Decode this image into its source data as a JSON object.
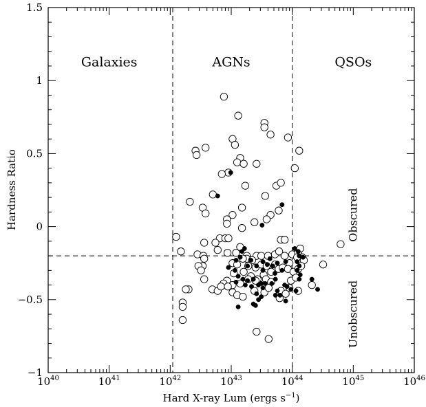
{
  "chart_data": {
    "type": "scatter",
    "title": "",
    "xlabel_main": "Hard X-ray Lum (ergs s",
    "xlabel_exp": "−1",
    "xlabel_close": ")",
    "ylabel": "Hardness Ratio",
    "x_scale": "log",
    "xlim": [
      1e+40,
      1e+46
    ],
    "ylim": [
      -1,
      1.5
    ],
    "x_ticks": [
      {
        "value": 1e+40,
        "base": "10",
        "exp": "40"
      },
      {
        "value": 1e+41,
        "base": "10",
        "exp": "41"
      },
      {
        "value": 1e+42,
        "base": "10",
        "exp": "42"
      },
      {
        "value": 1e+43,
        "base": "10",
        "exp": "43"
      },
      {
        "value": 1e+44,
        "base": "10",
        "exp": "44"
      },
      {
        "value": 1e+45,
        "base": "10",
        "exp": "45"
      },
      {
        "value": 1e+46,
        "base": "10",
        "exp": "46"
      }
    ],
    "y_ticks": [
      {
        "value": -1,
        "label": "−1"
      },
      {
        "value": -0.5,
        "label": "−0.5"
      },
      {
        "value": 0,
        "label": "0"
      },
      {
        "value": 0.5,
        "label": "0.5"
      },
      {
        "value": 1,
        "label": "1"
      },
      {
        "value": 1.5,
        "label": "1.5"
      }
    ],
    "grid": false,
    "reference_lines": {
      "vertical_x": [
        1.1e+42,
        1e+44
      ],
      "horizontal_y": -0.2
    },
    "region_labels": [
      {
        "text": "Galaxies",
        "x": 1e+41,
        "y": 1.13
      },
      {
        "text": "AGNs",
        "x": 1e+43,
        "y": 1.13
      },
      {
        "text": "QSOs",
        "x": 1e+45,
        "y": 1.13
      }
    ],
    "side_labels": [
      {
        "text": "Obscured",
        "x": 1e+45,
        "y": 0.08
      },
      {
        "text": "Unobscured",
        "x": 1e+45,
        "y": -0.6
      }
    ],
    "series": [
      {
        "marker": "open-circle",
        "points": [
          [
            4.9e+42,
            -0.43
          ],
          [
            7.6e+42,
            0.89
          ],
          [
            1.3e+43,
            0.76
          ],
          [
            3.5e+43,
            0.71
          ],
          [
            3.5e+43,
            0.68
          ],
          [
            4.4e+43,
            0.63
          ],
          [
            8.5e+43,
            0.61
          ],
          [
            1.05e+43,
            0.6
          ],
          [
            1.15e+43,
            0.56
          ],
          [
            1.3e+44,
            0.52
          ],
          [
            2.6e+42,
            0.52
          ],
          [
            3.8e+42,
            0.54
          ],
          [
            2.7e+42,
            0.49
          ],
          [
            1.4e+43,
            0.47
          ],
          [
            1.25e+43,
            0.44
          ],
          [
            1.6e+43,
            0.43
          ],
          [
            2.6e+43,
            0.43
          ],
          [
            1.1e+44,
            0.4
          ],
          [
            9e+42,
            0.37
          ],
          [
            7e+42,
            0.36
          ],
          [
            5.5e+43,
            0.28
          ],
          [
            6.5e+43,
            0.3
          ],
          [
            1.7e+43,
            0.28
          ],
          [
            3.6e+43,
            0.21
          ],
          [
            2.1e+42,
            0.17
          ],
          [
            5e+42,
            0.22
          ],
          [
            3.4e+42,
            0.13
          ],
          [
            3.8e+42,
            0.09
          ],
          [
            1.5e+43,
            0.13
          ],
          [
            2.4e+43,
            0.03
          ],
          [
            4.4e+43,
            0.08
          ],
          [
            6e+43,
            0.11
          ],
          [
            3.8e+43,
            0.05
          ],
          [
            8.5e+42,
            0.05
          ],
          [
            1.05e+43,
            0.08
          ],
          [
            8.5e+42,
            0.02
          ],
          [
            1.5e+43,
            -0.01
          ],
          [
            1.25e+42,
            -0.07
          ],
          [
            6.5e+42,
            -0.08
          ],
          [
            8e+42,
            -0.08
          ],
          [
            9e+42,
            -0.08
          ],
          [
            6.5e+43,
            -0.09
          ],
          [
            7.5e+43,
            -0.09
          ],
          [
            3.6e+42,
            -0.11
          ],
          [
            5.5e+42,
            -0.11
          ],
          [
            1.4e+43,
            -0.14
          ],
          [
            6.2e+44,
            -0.12
          ],
          [
            1.5e+42,
            -0.17
          ],
          [
            1.2e+43,
            -0.18
          ],
          [
            1.8e+43,
            -0.2
          ],
          [
            2.8e+42,
            -0.19
          ],
          [
            3.5e+42,
            -0.2
          ],
          [
            6e+42,
            -0.16
          ],
          [
            8.7e+42,
            -0.18
          ],
          [
            2.6e+43,
            -0.2
          ],
          [
            3.1e+43,
            -0.2
          ],
          [
            4e+43,
            -0.2
          ],
          [
            5.2e+43,
            -0.19
          ],
          [
            6.1e+43,
            -0.17
          ],
          [
            7.5e+43,
            -0.2
          ],
          [
            1e+44,
            -0.19
          ],
          [
            1.25e+44,
            -0.18
          ],
          [
            1.35e+44,
            -0.15
          ],
          [
            1.45e+44,
            -0.21
          ],
          [
            1.55e+44,
            -0.23
          ],
          [
            1.2e+44,
            -0.21
          ],
          [
            9e+43,
            -0.25
          ],
          [
            1.8e+43,
            -0.22
          ],
          [
            2.2e+43,
            -0.23
          ],
          [
            3.6e+42,
            -0.22
          ],
          [
            3.4e+42,
            -0.27
          ],
          [
            2.9e+42,
            -0.27
          ],
          [
            3.2e+42,
            -0.3
          ],
          [
            1.05e+43,
            -0.25
          ],
          [
            1.25e+43,
            -0.26
          ],
          [
            1.55e+43,
            -0.22
          ],
          [
            1.9e+43,
            -0.27
          ],
          [
            2.5e+43,
            -0.28
          ],
          [
            3.1e+43,
            -0.26
          ],
          [
            3.8e+43,
            -0.27
          ],
          [
            4.5e+43,
            -0.31
          ],
          [
            5.2e+43,
            -0.26
          ],
          [
            6e+43,
            -0.29
          ],
          [
            7e+43,
            -0.28
          ],
          [
            8.5e+43,
            -0.29
          ],
          [
            1.05e+44,
            -0.31
          ],
          [
            1.25e+44,
            -0.29
          ],
          [
            1.4e+44,
            -0.27
          ],
          [
            3.2e+44,
            -0.26
          ],
          [
            1.1e+43,
            -0.32
          ],
          [
            1.6e+43,
            -0.31
          ],
          [
            2.1e+43,
            -0.34
          ],
          [
            2.7e+43,
            -0.36
          ],
          [
            3.4e+43,
            -0.33
          ],
          [
            2.5e+43,
            -0.37
          ],
          [
            3.6e+42,
            -0.36
          ],
          [
            8.5e+42,
            -0.37
          ],
          [
            7.5e+42,
            -0.39
          ],
          [
            1.05e+43,
            -0.4
          ],
          [
            1.4e+43,
            -0.39
          ],
          [
            1.9e+43,
            -0.36
          ],
          [
            3.7e+43,
            -0.36
          ],
          [
            4.5e+43,
            -0.38
          ],
          [
            9.5e+43,
            -0.37
          ],
          [
            1.15e+44,
            -0.35
          ],
          [
            2.1e+44,
            -0.4
          ],
          [
            6e+42,
            -0.44
          ],
          [
            6.8e+42,
            -0.41
          ],
          [
            8.8e+42,
            -0.41
          ],
          [
            1.05e+43,
            -0.45
          ],
          [
            2.4e+43,
            -0.44
          ],
          [
            3.5e+43,
            -0.45
          ],
          [
            4.1e+43,
            -0.42
          ],
          [
            6.5e+43,
            -0.44
          ],
          [
            7.8e+43,
            -0.46
          ],
          [
            9e+43,
            -0.42
          ],
          [
            1.25e+44,
            -0.44
          ],
          [
            6.2e+43,
            -0.49
          ],
          [
            1.25e+43,
            -0.47
          ],
          [
            1.55e+43,
            -0.48
          ],
          [
            2e+42,
            -0.43
          ],
          [
            1.8e+42,
            -0.43
          ],
          [
            1.6e+42,
            -0.52
          ],
          [
            1.6e+42,
            -0.55
          ],
          [
            1.6e+42,
            -0.64
          ],
          [
            2.6e+43,
            -0.72
          ],
          [
            4.1e+43,
            -0.77
          ]
        ]
      },
      {
        "marker": "filled-circle",
        "points": [
          [
            6e+42,
            0.21
          ],
          [
            9.8e+42,
            0.37
          ],
          [
            6.8e+43,
            0.15
          ],
          [
            3.2e+43,
            0.01
          ],
          [
            1.1e+44,
            -0.15
          ],
          [
            1.25e+44,
            -0.17
          ],
          [
            1.3e+44,
            -0.2
          ],
          [
            1.5e+44,
            -0.21
          ],
          [
            1.2e+44,
            -0.24
          ],
          [
            1.3e+44,
            -0.27
          ],
          [
            1.2e+44,
            -0.3
          ],
          [
            1.35e+44,
            -0.33
          ],
          [
            1.3e+44,
            -0.36
          ],
          [
            1.5e+43,
            -0.17
          ],
          [
            1.65e+43,
            -0.15
          ],
          [
            1.4e+43,
            -0.21
          ],
          [
            1.2e+43,
            -0.23
          ],
          [
            2.1e+43,
            -0.23
          ],
          [
            1.85e+43,
            -0.27
          ],
          [
            2.6e+43,
            -0.27
          ],
          [
            3.3e+43,
            -0.24
          ],
          [
            3.3e+43,
            -0.3
          ],
          [
            3.9e+43,
            -0.26
          ],
          [
            4.3e+43,
            -0.22
          ],
          [
            4.8e+43,
            -0.27
          ],
          [
            5.7e+43,
            -0.25
          ],
          [
            5.2e+43,
            -0.32
          ],
          [
            6.8e+43,
            -0.3
          ],
          [
            7.8e+43,
            -0.24
          ],
          [
            9e+42,
            -0.28
          ],
          [
            1.15e+43,
            -0.3
          ],
          [
            1.3e+43,
            -0.34
          ],
          [
            1.55e+43,
            -0.36
          ],
          [
            1.85e+43,
            -0.37
          ],
          [
            2.3e+43,
            -0.36
          ],
          [
            3.1e+43,
            -0.39
          ],
          [
            3.6e+43,
            -0.39
          ],
          [
            4.6e+43,
            -0.39
          ],
          [
            5.3e+43,
            -0.36
          ],
          [
            7.5e+43,
            -0.4
          ],
          [
            8.2e+43,
            -0.41
          ],
          [
            9.5e+43,
            -0.43
          ],
          [
            1.15e+44,
            -0.44
          ],
          [
            2.1e+44,
            -0.36
          ],
          [
            2.6e+44,
            -0.43
          ],
          [
            1.7e+43,
            -0.4
          ],
          [
            2.15e+43,
            -0.41
          ],
          [
            2.8e+43,
            -0.4
          ],
          [
            3.3e+43,
            -0.42
          ],
          [
            2.6e+43,
            -0.46
          ],
          [
            3.1e+43,
            -0.48
          ],
          [
            2.8e+43,
            -0.5
          ],
          [
            2.3e+43,
            -0.53
          ],
          [
            2.5e+43,
            -0.54
          ],
          [
            1.3e+43,
            -0.55
          ],
          [
            5.7e+43,
            -0.44
          ],
          [
            5.3e+43,
            -0.47
          ],
          [
            6.3e+43,
            -0.47
          ],
          [
            7.8e+43,
            -0.51
          ],
          [
            1.2e+43,
            -0.38
          ]
        ]
      }
    ]
  }
}
